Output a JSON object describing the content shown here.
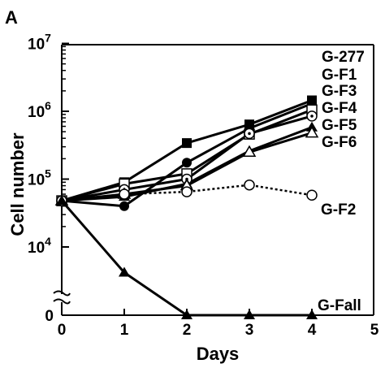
{
  "chart_data": {
    "type": "line",
    "panel_label": "A",
    "xlabel": "Days",
    "ylabel": "Cell number",
    "y_scale": "log",
    "y_axis_break": true,
    "xlim": [
      0,
      5
    ],
    "x_ticks": [
      "0",
      "1",
      "2",
      "3",
      "4",
      "5"
    ],
    "y_ticks": [
      {
        "value": 10000,
        "base": "10",
        "exp": "4"
      },
      {
        "value": 100000,
        "base": "10",
        "exp": "5"
      },
      {
        "value": 1000000,
        "base": "10",
        "exp": "6"
      },
      {
        "value": 10000000,
        "base": "10",
        "exp": "7"
      }
    ],
    "y_zero_label": "0",
    "x": [
      0,
      1,
      2,
      3,
      4
    ],
    "series": [
      {
        "name": "G-277",
        "marker": "square-filled",
        "line": "solid",
        "values": [
          48000,
          90000,
          340000,
          640000,
          1450000
        ]
      },
      {
        "name": "G-F1",
        "marker": "circle-filled",
        "line": "solid",
        "values": [
          48000,
          40000,
          175000,
          560000,
          1300000
        ]
      },
      {
        "name": "G-F3",
        "marker": "square-open",
        "line": "solid",
        "values": [
          48000,
          85000,
          120000,
          460000,
          1050000
        ]
      },
      {
        "name": "G-F4",
        "marker": "circle-dot",
        "line": "solid",
        "values": [
          48000,
          70000,
          100000,
          470000,
          850000
        ]
      },
      {
        "name": "G-F5",
        "marker": "triangle-filled",
        "line": "solid",
        "values": [
          48000,
          55000,
          85000,
          260000,
          580000
        ]
      },
      {
        "name": "G-F6",
        "marker": "triangle-open",
        "line": "solid",
        "values": [
          48000,
          60000,
          80000,
          250000,
          480000
        ]
      },
      {
        "name": "G-F2",
        "marker": "circle-open",
        "line": "dotted",
        "values": [
          48000,
          60000,
          65000,
          82000,
          58000
        ]
      },
      {
        "name": "G-Fall",
        "marker": "triangle-filled",
        "line": "solid",
        "values": [
          48000,
          4200,
          0,
          0,
          0
        ]
      }
    ]
  }
}
